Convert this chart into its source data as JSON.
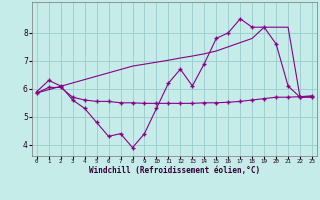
{
  "xlabel": "Windchill (Refroidissement éolien,°C)",
  "background_color": "#c5ece9",
  "line_color": "#880088",
  "grid_color": "#99cccc",
  "xlim_min": -0.4,
  "xlim_max": 23.4,
  "ylim_min": 3.6,
  "ylim_max": 9.1,
  "xticks": [
    0,
    1,
    2,
    3,
    4,
    5,
    6,
    7,
    8,
    9,
    10,
    11,
    12,
    13,
    14,
    15,
    16,
    17,
    18,
    19,
    20,
    21,
    22,
    23
  ],
  "yticks": [
    4,
    5,
    6,
    7,
    8
  ],
  "line1_x": [
    0,
    1,
    2,
    3,
    4,
    5,
    6,
    7,
    8,
    9,
    10,
    11,
    12,
    13,
    14,
    15,
    16,
    17,
    18,
    19,
    20,
    21,
    22,
    23
  ],
  "line1_y": [
    5.9,
    6.3,
    6.1,
    5.6,
    5.3,
    4.8,
    4.3,
    4.4,
    3.9,
    4.4,
    5.3,
    6.2,
    6.7,
    6.1,
    6.9,
    7.8,
    8.0,
    8.5,
    8.2,
    8.2,
    7.6,
    6.1,
    5.7,
    5.7
  ],
  "line2_x": [
    0,
    1,
    2,
    3,
    4,
    5,
    6,
    7,
    8,
    9,
    10,
    11,
    12,
    13,
    14,
    15,
    16,
    17,
    18,
    19,
    20,
    21,
    22,
    23
  ],
  "line2_y": [
    5.85,
    6.05,
    6.05,
    5.7,
    5.6,
    5.55,
    5.55,
    5.5,
    5.5,
    5.48,
    5.48,
    5.48,
    5.48,
    5.48,
    5.5,
    5.5,
    5.52,
    5.55,
    5.6,
    5.65,
    5.7,
    5.7,
    5.72,
    5.75
  ],
  "line3_x": [
    0,
    1,
    2,
    3,
    4,
    5,
    6,
    7,
    8,
    9,
    10,
    11,
    12,
    13,
    14,
    15,
    16,
    17,
    18,
    19,
    20,
    21,
    22,
    23
  ],
  "line3_y": [
    5.85,
    5.97,
    6.09,
    6.21,
    6.33,
    6.45,
    6.57,
    6.69,
    6.81,
    6.88,
    6.95,
    7.02,
    7.1,
    7.17,
    7.25,
    7.35,
    7.5,
    7.65,
    7.8,
    8.2,
    8.2,
    8.2,
    5.7,
    5.72
  ]
}
